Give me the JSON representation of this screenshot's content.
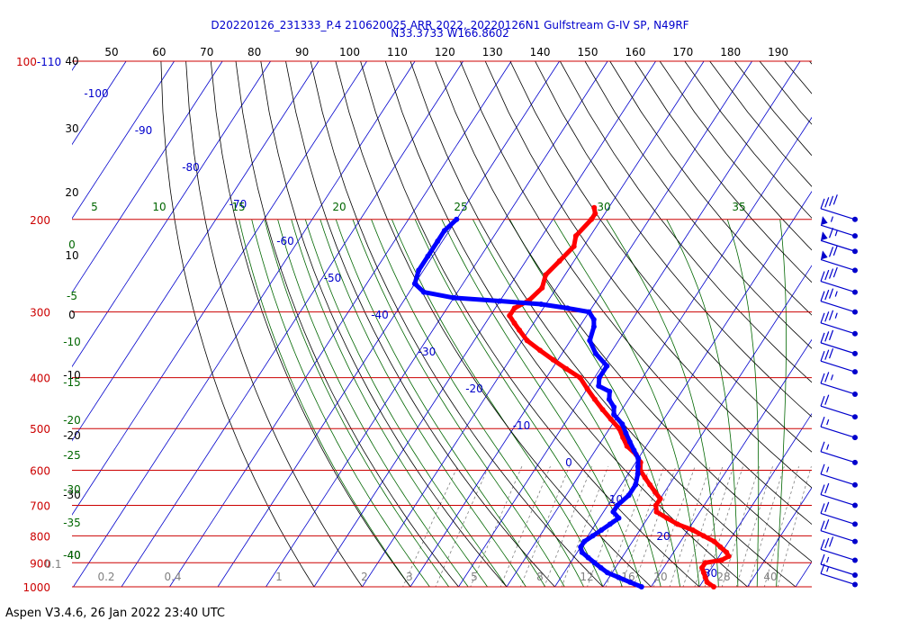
{
  "header": {
    "line1": "D20220126_231333_P.4 210620025 ARR 2022, 20220126N1 Gulfstream G-IV SP, N49RF",
    "line2": "N33.3733 W166.8602"
  },
  "footer": {
    "text": "Aspen V3.4.6, 26 Jan 2022  23:40 UTC"
  },
  "chart_data": {
    "type": "skew-t log-p",
    "pressure_label_color": "#cc0000",
    "pressure_labels": [
      {
        "p": 100,
        "label": "100-110"
      },
      {
        "p": 200,
        "label": "200"
      },
      {
        "p": 300,
        "label": "300"
      },
      {
        "p": 400,
        "label": "400"
      },
      {
        "p": 500,
        "label": "500"
      },
      {
        "p": 600,
        "label": "600"
      },
      {
        "p": 700,
        "label": "700"
      },
      {
        "p": 800,
        "label": "800"
      },
      {
        "p": 900,
        "label": "900"
      },
      {
        "p": 1000,
        "label": "1000"
      }
    ],
    "isobars_hpa": [
      100,
      200,
      300,
      400,
      500,
      600,
      700,
      800,
      900,
      1000
    ],
    "top_scale_labels": [
      "50",
      "60",
      "70",
      "80",
      "90",
      "100",
      "110",
      "120",
      "130",
      "140",
      "150",
      "160",
      "170",
      "180",
      "190"
    ],
    "altitude_labels_kft": [
      "40",
      "30",
      "20",
      "10",
      "0",
      "-10",
      "-20",
      "-30",
      "-40"
    ],
    "isotherm_labels_c": [
      "-100",
      "-90",
      "-80",
      "-70",
      "-60",
      "-50",
      "-40",
      "-30",
      "-20",
      "-10",
      "0",
      "10",
      "20",
      "30"
    ],
    "mixing_ratio_labels": [
      "0.1",
      "0.2",
      "0.4",
      "1",
      "2",
      "3",
      "5",
      "8",
      "12",
      "16",
      "20",
      "28",
      "40"
    ],
    "theta_e_labels": [
      "5",
      "10",
      "15",
      "20",
      "25",
      "30",
      "35"
    ],
    "dry_adiabat_labels": [
      "0",
      "-5",
      "-10",
      "-15",
      "-20",
      "-25",
      "-30",
      "-35",
      "-40"
    ],
    "colors": {
      "isobar": "#cc0000",
      "isotherm": "#0000cc",
      "dry_adiabat": "#000000",
      "moist_adiabat": "#006600",
      "mixing_ratio": "#808080",
      "temperature": "#ff0000",
      "dewpoint": "#0000ff",
      "wind_barb": "#0000cc"
    },
    "series": [
      {
        "name": "Temperature",
        "points": [
          [
            190,
            -53
          ],
          [
            195,
            -52
          ],
          [
            200,
            -52
          ],
          [
            215,
            -53
          ],
          [
            225,
            -52
          ],
          [
            240,
            -53
          ],
          [
            255,
            -54
          ],
          [
            270,
            -53
          ],
          [
            285,
            -54
          ],
          [
            295,
            -56
          ],
          [
            305,
            -56
          ],
          [
            315,
            -54
          ],
          [
            325,
            -52
          ],
          [
            340,
            -49
          ],
          [
            355,
            -45
          ],
          [
            370,
            -41
          ],
          [
            385,
            -37
          ],
          [
            400,
            -33
          ],
          [
            420,
            -30
          ],
          [
            440,
            -27
          ],
          [
            460,
            -24
          ],
          [
            480,
            -21
          ],
          [
            500,
            -18
          ],
          [
            520,
            -16
          ],
          [
            540,
            -14
          ],
          [
            560,
            -11
          ],
          [
            580,
            -9
          ],
          [
            600,
            -8
          ],
          [
            620,
            -6
          ],
          [
            640,
            -4
          ],
          [
            660,
            -2
          ],
          [
            680,
            0
          ],
          [
            700,
            0
          ],
          [
            720,
            1
          ],
          [
            740,
            4
          ],
          [
            760,
            7
          ],
          [
            780,
            11
          ],
          [
            800,
            14
          ],
          [
            820,
            17
          ],
          [
            840,
            19
          ],
          [
            860,
            21
          ],
          [
            875,
            22
          ],
          [
            890,
            21
          ],
          [
            900,
            18
          ],
          [
            920,
            18
          ],
          [
            940,
            19
          ],
          [
            960,
            20
          ],
          [
            980,
            21
          ],
          [
            1000,
            23
          ]
        ]
      },
      {
        "name": "Dewpoint",
        "points": [
          [
            200,
            -80
          ],
          [
            210,
            -81
          ],
          [
            220,
            -81
          ],
          [
            235,
            -81
          ],
          [
            250,
            -81
          ],
          [
            265,
            -80
          ],
          [
            275,
            -77
          ],
          [
            282,
            -70
          ],
          [
            286,
            -60
          ],
          [
            290,
            -51
          ],
          [
            295,
            -45
          ],
          [
            300,
            -40
          ],
          [
            310,
            -38
          ],
          [
            320,
            -37
          ],
          [
            340,
            -36
          ],
          [
            360,
            -33
          ],
          [
            380,
            -29
          ],
          [
            400,
            -29
          ],
          [
            415,
            -28
          ],
          [
            425,
            -25
          ],
          [
            440,
            -24
          ],
          [
            455,
            -22
          ],
          [
            470,
            -21
          ],
          [
            490,
            -18
          ],
          [
            510,
            -16
          ],
          [
            530,
            -14
          ],
          [
            550,
            -12
          ],
          [
            570,
            -10
          ],
          [
            590,
            -9
          ],
          [
            610,
            -8
          ],
          [
            640,
            -7
          ],
          [
            670,
            -7
          ],
          [
            700,
            -8
          ],
          [
            720,
            -8
          ],
          [
            740,
            -6
          ],
          [
            760,
            -7
          ],
          [
            780,
            -8
          ],
          [
            800,
            -9
          ],
          [
            820,
            -10
          ],
          [
            840,
            -10
          ],
          [
            860,
            -9
          ],
          [
            880,
            -7
          ],
          [
            900,
            -5
          ],
          [
            920,
            -3
          ],
          [
            940,
            -1
          ],
          [
            960,
            2
          ],
          [
            980,
            5
          ],
          [
            1000,
            8
          ]
        ]
      }
    ],
    "wind_barbs": [
      {
        "p": 200,
        "speed_kt": 40
      },
      {
        "p": 215,
        "speed_kt": 55
      },
      {
        "p": 230,
        "speed_kt": 65
      },
      {
        "p": 250,
        "speed_kt": 70
      },
      {
        "p": 275,
        "speed_kt": 40
      },
      {
        "p": 300,
        "speed_kt": 35
      },
      {
        "p": 330,
        "speed_kt": 35
      },
      {
        "p": 360,
        "speed_kt": 30
      },
      {
        "p": 390,
        "speed_kt": 30
      },
      {
        "p": 430,
        "speed_kt": 25
      },
      {
        "p": 475,
        "speed_kt": 20
      },
      {
        "p": 520,
        "speed_kt": 15
      },
      {
        "p": 580,
        "speed_kt": 15
      },
      {
        "p": 640,
        "speed_kt": 15
      },
      {
        "p": 700,
        "speed_kt": 20
      },
      {
        "p": 760,
        "speed_kt": 20
      },
      {
        "p": 820,
        "speed_kt": 20
      },
      {
        "p": 890,
        "speed_kt": 30
      },
      {
        "p": 950,
        "speed_kt": 15
      },
      {
        "p": 990,
        "speed_kt": 15
      }
    ]
  }
}
